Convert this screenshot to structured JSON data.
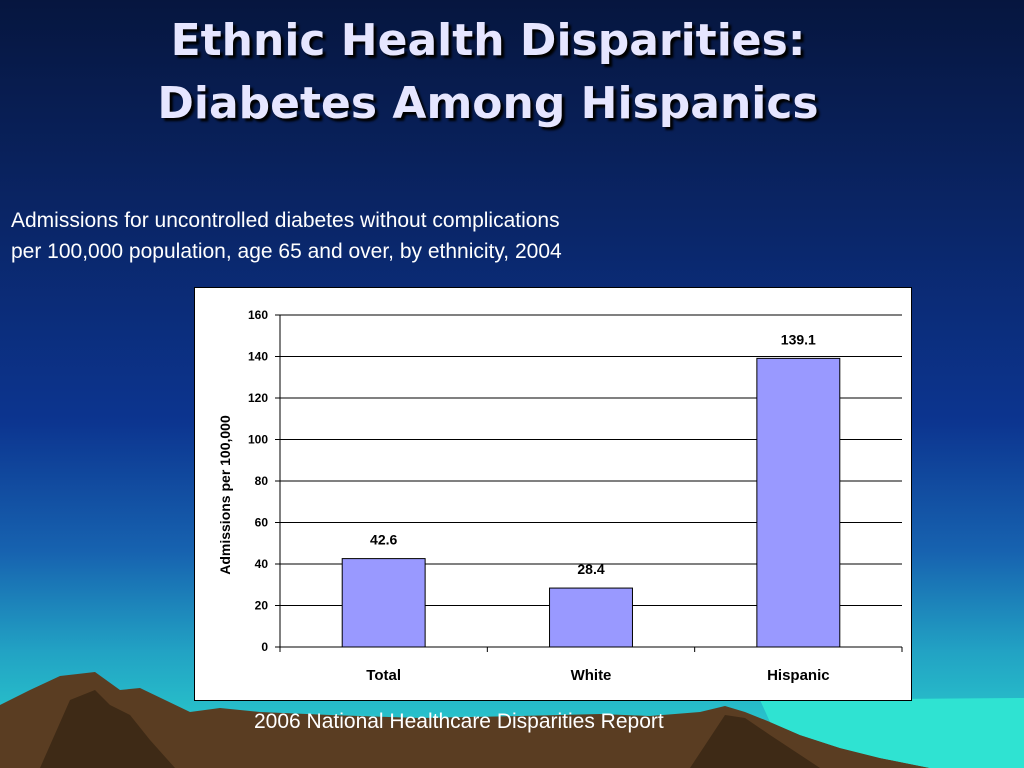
{
  "slide": {
    "title_line1": "Ethnic Health Disparities:",
    "title_line2": "Diabetes Among Hispanics",
    "subtitle_line1": "Admissions for uncontrolled diabetes without complications",
    "subtitle_line2": "per 100,000 population, age 65 and over, by ethnicity, 2004",
    "source": "2006 National Healthcare Disparities Report"
  },
  "colors": {
    "bar_fill": "#9999ff",
    "title_text": "#e6e6ff",
    "background_top": "#06163f",
    "background_bottom": "#2cd8cf",
    "mountains": "#5a3d22"
  },
  "chart_data": {
    "type": "bar",
    "categories": [
      "Total",
      "White",
      "Hispanic"
    ],
    "values": [
      42.6,
      28.4,
      139.1
    ],
    "value_labels": [
      "42.6",
      "28.4",
      "139.1"
    ],
    "ylabel": "Admissions per 100,000",
    "xlabel": "",
    "ylim": [
      0,
      160
    ],
    "yticks": [
      0,
      20,
      40,
      60,
      80,
      100,
      120,
      140,
      160
    ],
    "grid": true,
    "legend": "none"
  }
}
